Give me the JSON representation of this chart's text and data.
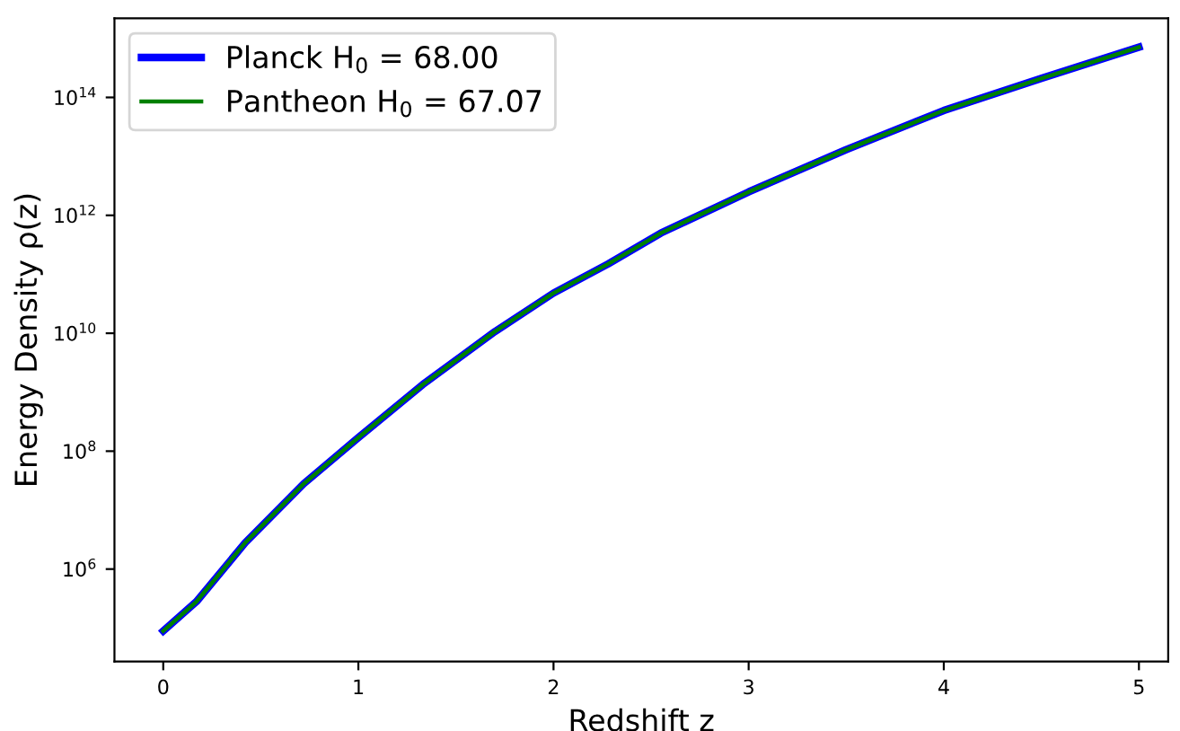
{
  "chart_data": {
    "type": "line",
    "xlabel": "Redshift z",
    "ylabel": "Energy Density ρ(z)",
    "log": "y",
    "xlim": [
      -0.25,
      5.15
    ],
    "ylim": [
      27000.0,
      2200000000000000.0
    ],
    "xticks": [
      0,
      1,
      2,
      3,
      4,
      5
    ],
    "yticks": [
      {
        "value": 1000000.0,
        "label": "10$^{6}$"
      },
      {
        "value": 100000000.0,
        "label": "10$^{8}$"
      },
      {
        "value": 10000000000.0,
        "label": "10$^{10}$"
      },
      {
        "value": 1000000000000.0,
        "label": "10$^{12}$"
      },
      {
        "value": 100000000000000.0,
        "label": "10$^{14}$"
      }
    ],
    "grid": false,
    "legend": "top left",
    "line_style": "solid",
    "marker": "none",
    "series": [
      {
        "name": "Planck H$_{0}$ = 68.00",
        "color": "#0000ff",
        "x": [
          0,
          0.17,
          0.42,
          0.72,
          1.0,
          1.33,
          1.7,
          2.0,
          2.28,
          2.55,
          3.0,
          3.5,
          4.0,
          4.5,
          5.0
        ],
        "values": [
          89000.0,
          280000.0,
          2800000.0,
          28000000.0,
          170000000.0,
          1350000000.0,
          10700000000.0,
          48000000000.0,
          150000000000.0,
          500000000000.0,
          2500000000000.0,
          13000000000000.0,
          60000000000000.0,
          210000000000000.0,
          710000000000000.0
        ]
      },
      {
        "name": "Pantheon H$_{0}$ = 67.07",
        "color": "#008000",
        "x": [
          0,
          0.17,
          0.42,
          0.72,
          1.0,
          1.33,
          1.7,
          2.0,
          2.28,
          2.55,
          3.0,
          3.5,
          4.0,
          4.5,
          5.0
        ],
        "values": [
          89000.0,
          280000.0,
          2800000.0,
          28000000.0,
          170000000.0,
          1350000000.0,
          10700000000.0,
          48000000000.0,
          150000000000.0,
          500000000000.0,
          2500000000000.0,
          13000000000000.0,
          60000000000000.0,
          210000000000000.0,
          710000000000000.0
        ]
      }
    ]
  }
}
